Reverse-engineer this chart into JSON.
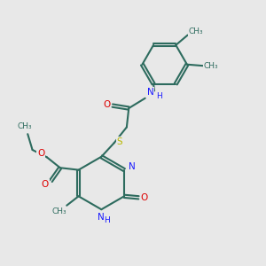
{
  "bg_color": "#e8e8e8",
  "bond_color": "#2d6b5e",
  "n_color": "#1a1aff",
  "o_color": "#dd0000",
  "s_color": "#b8b800",
  "lw": 1.5,
  "dbo": 0.055,
  "fs": 7.5,
  "fsg": 6.5,
  "xlim": [
    0,
    10
  ],
  "ylim": [
    0,
    10
  ]
}
